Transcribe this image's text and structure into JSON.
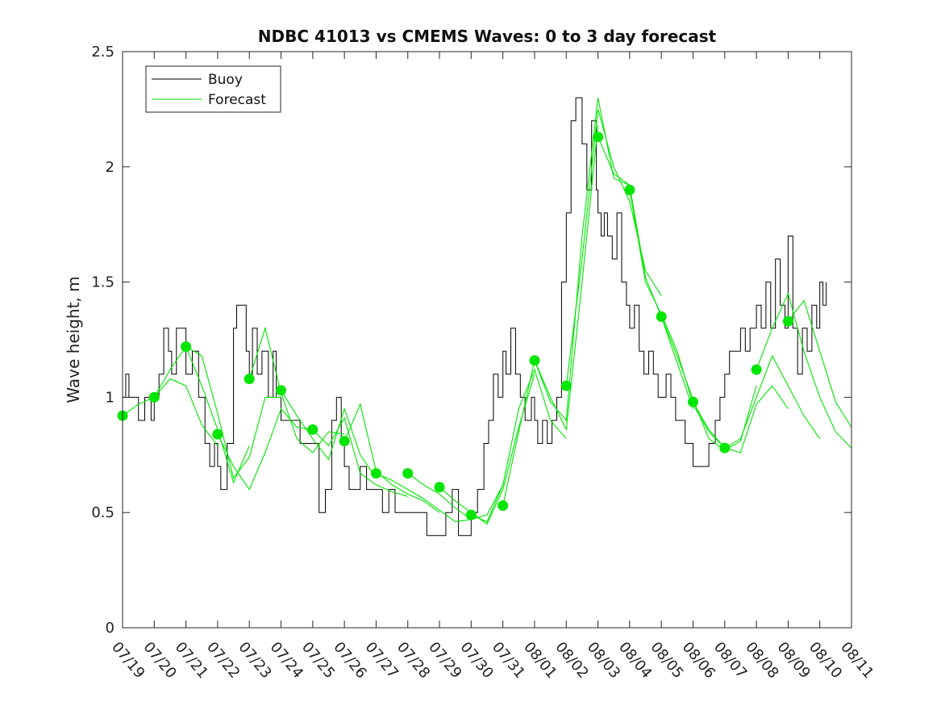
{
  "chart_data": {
    "type": "line",
    "title": "NDBC 41013 vs CMEMS Waves: 0 to 3 day forecast",
    "xlabel": "",
    "ylabel": "Wave height, m",
    "ylim": [
      0,
      2.5
    ],
    "yticks": [
      "0",
      "0.5",
      "1",
      "1.5",
      "2",
      "2.5"
    ],
    "xlim": [
      "07/19",
      "08/11"
    ],
    "xticks": [
      "07/19",
      "07/20",
      "07/21",
      "07/22",
      "07/23",
      "07/24",
      "07/25",
      "07/26",
      "07/27",
      "07/28",
      "07/29",
      "07/30",
      "07/31",
      "08/01",
      "08/02",
      "08/03",
      "08/04",
      "08/05",
      "08/06",
      "08/07",
      "08/08",
      "08/09",
      "08/10",
      "08/11"
    ],
    "grid": false,
    "legend": {
      "placement": "top-left",
      "entries": [
        "Buoy",
        "Forecast"
      ]
    },
    "colors": {
      "buoy": "#000000",
      "forecast": "#00e600",
      "axis": "#262626"
    },
    "buoy": {
      "name": "Buoy",
      "x": [
        0,
        0.1,
        0.2,
        0.4,
        0.5,
        0.7,
        0.9,
        1.0,
        1.15,
        1.3,
        1.45,
        1.55,
        1.7,
        1.9,
        2.0,
        2.2,
        2.4,
        2.6,
        2.75,
        2.9,
        3.0,
        3.1,
        3.3,
        3.5,
        3.6,
        3.8,
        3.9,
        4.0,
        4.1,
        4.25,
        4.4,
        4.6,
        4.75,
        4.85,
        5.0,
        5.2,
        5.4,
        5.6,
        5.8,
        6.0,
        6.2,
        6.4,
        6.6,
        6.75,
        6.9,
        7.0,
        7.15,
        7.3,
        7.5,
        7.7,
        7.9,
        8.0,
        8.2,
        8.4,
        8.6,
        8.8,
        9.0,
        9.2,
        9.4,
        9.6,
        9.8,
        10.0,
        10.2,
        10.4,
        10.6,
        10.8,
        11.0,
        11.2,
        11.4,
        11.55,
        11.7,
        11.85,
        12.0,
        12.1,
        12.25,
        12.4,
        12.55,
        12.7,
        12.9,
        13.0,
        13.1,
        13.25,
        13.4,
        13.55,
        13.7,
        13.85,
        14.0,
        14.15,
        14.3,
        14.5,
        14.65,
        14.8,
        14.95,
        15.0,
        15.1,
        15.2,
        15.3,
        15.45,
        15.6,
        15.75,
        15.9,
        16.0,
        16.15,
        16.3,
        16.45,
        16.6,
        16.75,
        16.9,
        17.0,
        17.15,
        17.3,
        17.45,
        17.6,
        17.75,
        17.9,
        18.0,
        18.15,
        18.3,
        18.5,
        18.7,
        18.85,
        19.0,
        19.15,
        19.3,
        19.5,
        19.65,
        19.8,
        20.0,
        20.15,
        20.3,
        20.45,
        20.6,
        20.75,
        20.9,
        21.0,
        21.15,
        21.3,
        21.45,
        21.6,
        21.75,
        21.9,
        22.0,
        22.1,
        22.2
      ],
      "y": [
        1.0,
        1.1,
        1.0,
        1.0,
        0.9,
        1.0,
        0.9,
        1.0,
        1.1,
        1.3,
        1.2,
        1.1,
        1.3,
        1.3,
        1.1,
        1.2,
        1.0,
        0.8,
        0.7,
        0.8,
        0.7,
        0.6,
        0.8,
        1.3,
        1.4,
        1.4,
        1.2,
        1.1,
        1.3,
        1.1,
        1.2,
        1.0,
        1.2,
        1.0,
        0.9,
        0.9,
        0.9,
        0.8,
        0.8,
        0.8,
        0.5,
        0.6,
        0.9,
        1.0,
        0.8,
        0.7,
        0.6,
        0.6,
        0.7,
        0.6,
        0.6,
        0.6,
        0.5,
        0.6,
        0.5,
        0.5,
        0.5,
        0.5,
        0.5,
        0.4,
        0.4,
        0.4,
        0.5,
        0.6,
        0.4,
        0.4,
        0.5,
        0.6,
        0.8,
        0.9,
        1.1,
        1.0,
        1.2,
        1.1,
        1.3,
        1.1,
        1.0,
        0.9,
        1.0,
        0.9,
        0.8,
        0.9,
        0.8,
        0.9,
        1.0,
        1.5,
        1.8,
        2.2,
        2.3,
        2.1,
        1.9,
        2.2,
        1.9,
        1.8,
        1.7,
        1.8,
        1.7,
        1.6,
        1.8,
        1.5,
        1.4,
        1.3,
        1.4,
        1.2,
        1.1,
        1.2,
        1.1,
        1.0,
        1.0,
        1.1,
        1.0,
        0.9,
        0.9,
        0.8,
        0.8,
        0.7,
        0.7,
        0.7,
        0.8,
        0.9,
        1.0,
        1.1,
        1.2,
        1.2,
        1.3,
        1.2,
        1.3,
        1.4,
        1.3,
        1.5,
        1.3,
        1.6,
        1.4,
        1.3,
        1.7,
        1.3,
        1.1,
        1.3,
        1.2,
        1.4,
        1.3,
        1.5,
        1.4,
        1.5
      ]
    },
    "forecast_series": [
      {
        "x": [
          0.0,
          0.5,
          1.0,
          1.5,
          2.0,
          2.5,
          3.0
        ],
        "y": [
          0.92,
          0.97,
          1.0,
          1.08,
          1.05,
          0.88,
          0.79
        ]
      },
      {
        "x": [
          1.0,
          1.5,
          2.0,
          2.5,
          3.0,
          3.5,
          4.0
        ],
        "y": [
          1.0,
          1.12,
          1.22,
          1.05,
          0.86,
          0.63,
          0.79
        ]
      },
      {
        "x": [
          2.0,
          2.5,
          3.0,
          3.5,
          4.0,
          4.5,
          5.0
        ],
        "y": [
          1.22,
          1.18,
          0.93,
          0.65,
          0.74,
          1.0,
          1.0
        ]
      },
      {
        "x": [
          3.0,
          3.5,
          4.0,
          4.5,
          5.0,
          5.5,
          6.0
        ],
        "y": [
          0.84,
          0.7,
          0.6,
          0.76,
          0.95,
          0.87,
          0.86
        ]
      },
      {
        "x": [
          4.0,
          4.5,
          5.0,
          5.5,
          6.0,
          6.5,
          7.0
        ],
        "y": [
          1.08,
          1.3,
          1.02,
          0.82,
          0.76,
          0.85,
          0.84
        ]
      },
      {
        "x": [
          5.0,
          5.5,
          6.0,
          6.5,
          7.0,
          7.5,
          8.0
        ],
        "y": [
          1.03,
          0.92,
          0.82,
          0.73,
          0.95,
          0.75,
          0.65
        ]
      },
      {
        "x": [
          6.0,
          6.5,
          7.0,
          7.5,
          8.0,
          8.5,
          9.0
        ],
        "y": [
          0.86,
          0.79,
          0.91,
          0.67,
          0.62,
          0.59,
          0.57
        ]
      },
      {
        "x": [
          7.0,
          7.5,
          8.0,
          8.5,
          9.0,
          9.5,
          10.0
        ],
        "y": [
          0.81,
          0.97,
          0.68,
          0.62,
          0.58,
          0.55,
          0.5
        ]
      },
      {
        "x": [
          8.0,
          8.5,
          9.0,
          9.5,
          10.0,
          10.5,
          11.0
        ],
        "y": [
          0.67,
          0.64,
          0.6,
          0.56,
          0.51,
          0.46,
          0.47
        ]
      },
      {
        "x": [
          9.0,
          9.5,
          10.0,
          10.5,
          11.0,
          11.5,
          12.0
        ],
        "y": [
          0.67,
          0.62,
          0.58,
          0.52,
          0.47,
          0.49,
          0.62
        ]
      },
      {
        "x": [
          10.0,
          10.5,
          11.0,
          11.5,
          12.0,
          12.5,
          13.0
        ],
        "y": [
          0.61,
          0.55,
          0.5,
          0.45,
          0.6,
          0.87,
          1.1
        ]
      },
      {
        "x": [
          11.0,
          11.5,
          12.0,
          12.5,
          13.0,
          13.5,
          14.0
        ],
        "y": [
          0.49,
          0.46,
          0.62,
          0.95,
          1.12,
          0.9,
          0.82
        ]
      },
      {
        "x": [
          12.0,
          12.5,
          13.0,
          13.5,
          14.0,
          14.5,
          15.0
        ],
        "y": [
          0.53,
          0.85,
          1.16,
          1.0,
          0.86,
          1.5,
          2.18
        ]
      },
      {
        "x": [
          13.0,
          13.5,
          14.0,
          14.5,
          15.0,
          15.5,
          16.0
        ],
        "y": [
          1.16,
          0.98,
          0.9,
          1.7,
          2.3,
          1.95,
          1.92
        ]
      },
      {
        "x": [
          14.0,
          14.5,
          15.0,
          15.5,
          16.0,
          16.5,
          17.0
        ],
        "y": [
          1.05,
          1.6,
          2.25,
          2.0,
          1.85,
          1.55,
          1.44
        ]
      },
      {
        "x": [
          15.0,
          15.5,
          16.0,
          16.5,
          17.0,
          17.5,
          18.0
        ],
        "y": [
          2.13,
          1.97,
          1.92,
          1.52,
          1.35,
          1.15,
          0.95
        ]
      },
      {
        "x": [
          16.0,
          16.5,
          17.0,
          17.5,
          18.0,
          18.5,
          19.0
        ],
        "y": [
          1.9,
          1.5,
          1.36,
          1.2,
          0.97,
          0.85,
          0.78
        ]
      },
      {
        "x": [
          17.0,
          17.5,
          18.0,
          18.5,
          19.0,
          19.5,
          20.0
        ],
        "y": [
          1.35,
          1.18,
          0.99,
          0.82,
          0.77,
          0.81,
          1.05
        ]
      },
      {
        "x": [
          18.0,
          18.5,
          19.0,
          19.5,
          20.0,
          20.5,
          21.0
        ],
        "y": [
          0.98,
          0.86,
          0.78,
          0.76,
          0.97,
          1.05,
          0.95
        ]
      },
      {
        "x": [
          19.0,
          19.5,
          20.0,
          20.5,
          21.0,
          21.5,
          22.0
        ],
        "y": [
          0.78,
          0.82,
          1.0,
          1.18,
          1.05,
          0.92,
          0.82
        ]
      },
      {
        "x": [
          20.0,
          20.5,
          21.0,
          21.5,
          22.0,
          22.5,
          23.0
        ],
        "y": [
          1.12,
          1.3,
          1.45,
          1.2,
          1.0,
          0.85,
          0.78
        ]
      },
      {
        "x": [
          21.0,
          21.5,
          22.0,
          22.5,
          23.0
        ],
        "y": [
          1.33,
          1.42,
          1.2,
          0.98,
          0.87
        ]
      }
    ],
    "forecast_markers": {
      "x": [
        0,
        1,
        2,
        3,
        4,
        5,
        6,
        7,
        8,
        9,
        10,
        11,
        12,
        13,
        14,
        15,
        16,
        17,
        18,
        19,
        20,
        21
      ],
      "y": [
        0.92,
        1.0,
        1.22,
        0.84,
        1.08,
        1.03,
        0.86,
        0.81,
        0.67,
        0.67,
        0.61,
        0.49,
        0.53,
        1.16,
        1.05,
        2.13,
        1.9,
        1.35,
        0.98,
        0.78,
        1.12,
        1.33
      ]
    }
  }
}
